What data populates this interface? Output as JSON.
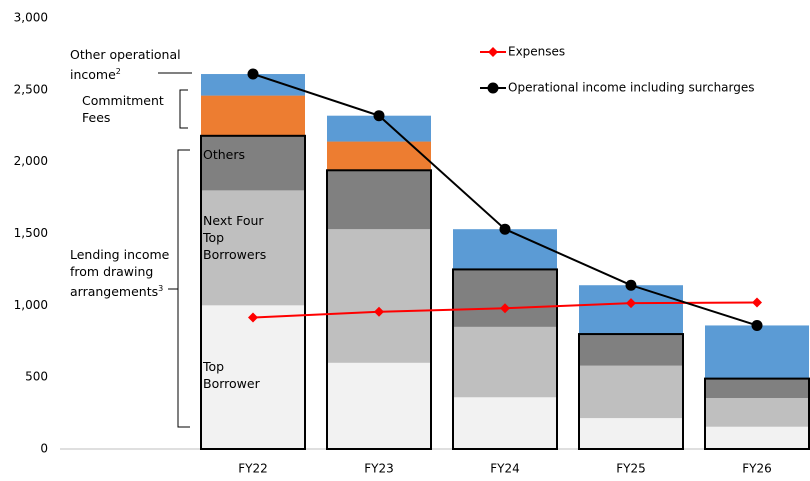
{
  "chart_data": {
    "type": "bar",
    "stacked": true,
    "categories": [
      "FY22",
      "FY23",
      "FY24",
      "FY25",
      "FY26"
    ],
    "series": [
      {
        "name": "Top Borrower",
        "type": "bar",
        "color": "#f2f2f2",
        "values": [
          1000,
          600,
          360,
          215,
          155
        ]
      },
      {
        "name": "Next Four Top Borrowers",
        "type": "bar",
        "color": "#bfbfbf",
        "values": [
          800,
          930,
          490,
          365,
          200
        ]
      },
      {
        "name": "Others",
        "type": "bar",
        "color": "#808080",
        "values": [
          380,
          410,
          400,
          220,
          135
        ]
      },
      {
        "name": "Commitment Fees",
        "type": "bar",
        "color": "#ed7d31",
        "values": [
          280,
          200,
          0,
          0,
          0
        ]
      },
      {
        "name": "Other operational income",
        "note": "2",
        "type": "bar",
        "color": "#5b9bd5",
        "values": [
          150,
          180,
          280,
          340,
          370
        ]
      },
      {
        "name": "Expenses",
        "type": "line",
        "marker": "diamond",
        "color": "#ff0000",
        "values": [
          915,
          955,
          980,
          1015,
          1020
        ]
      },
      {
        "name": "Operational income including surcharges",
        "type": "line",
        "marker": "circle",
        "color": "#000000",
        "values": [
          2610,
          2320,
          1530,
          1140,
          860
        ]
      }
    ],
    "group_label": {
      "text": "Lending income from drawing arrangements",
      "note": "3"
    },
    "ylim": [
      0,
      3000
    ],
    "yticks": [
      0,
      500,
      {
        "value": 1000,
        "label": "1,000"
      },
      {
        "value": 1500,
        "label": "1,500"
      },
      {
        "value": 2000,
        "label": "2,000"
      },
      {
        "value": 2500,
        "label": "2,500"
      },
      {
        "value": 3000,
        "label": "3,000"
      }
    ],
    "grid": false
  }
}
